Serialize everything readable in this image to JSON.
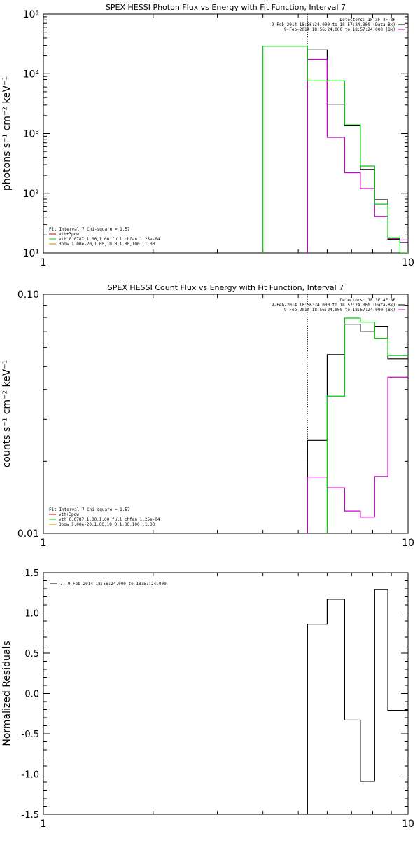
{
  "chart_data": [
    {
      "type": "line",
      "title": "SPEX HESSI Photon Flux vs Energy with Fit Function, Interval 7",
      "xlabel": "",
      "ylabel": "photons s⁻¹ cm⁻² keV⁻¹",
      "xscale": "log",
      "yscale": "log",
      "xlim": [
        1,
        10
      ],
      "ylim": [
        10,
        100000
      ],
      "x_ticks": [
        {
          "v": 1,
          "label": "1"
        },
        {
          "v": 10,
          "label": "10"
        }
      ],
      "y_ticks": [
        {
          "v": 10,
          "label": "10¹"
        },
        {
          "v": 100,
          "label": "10²"
        },
        {
          "v": 1000,
          "label": "10³"
        },
        {
          "v": 10000,
          "label": "10⁴"
        },
        {
          "v": 100000,
          "label": "10⁵"
        }
      ],
      "marker_line_x": 5.3,
      "legend_right": [
        {
          "text": "Detectors: 1F 3F 4F 8F",
          "color": "#000000"
        },
        {
          "text": "9-Feb-2014 18:56:24.000 to 18:57:24.000 (Data-Bk)",
          "color": "#000000"
        },
        {
          "text": "9-Feb-2014 18:56:24.000 to 18:57:24.000 (Bk)",
          "color": "#cc00cc"
        }
      ],
      "legend_left": [
        {
          "text": "Fit Interval 7   Chi-square = 1.57",
          "color": "#000000"
        },
        {
          "text": "vth+3pow",
          "color": "#cc0000"
        },
        {
          "text": "vth 0.0787,1.00,1.00  full chfan 1.25e-04",
          "color": "#00cc00"
        },
        {
          "text": "3pow 1.00e-20,1.00,10.0,1.00,100.,1.00",
          "color": "#cc8800"
        }
      ],
      "series": [
        {
          "name": "Data-Bk",
          "color": "#000000",
          "edges": [
            5.3,
            6.0,
            6.7,
            7.4,
            8.1,
            8.8,
            9.5,
            10.2
          ],
          "values": [
            25000,
            3100,
            1350,
            250,
            78,
            17,
            15
          ]
        },
        {
          "name": "Bk",
          "color": "#cc00cc",
          "edges": [
            5.3,
            6.0,
            6.7,
            7.4,
            8.1,
            8.8,
            9.5,
            10.2
          ],
          "values": [
            17500,
            860,
            220,
            120,
            41,
            17.5,
            16.5
          ]
        },
        {
          "name": "vth",
          "color": "#00cc00",
          "edges": [
            4.0,
            5.3,
            6.0,
            6.7,
            7.4,
            8.1,
            8.8,
            9.5,
            10.2
          ],
          "values": [
            29000,
            7600,
            7600,
            1400,
            285,
            66,
            18,
            10
          ]
        }
      ]
    },
    {
      "type": "line",
      "title": "SPEX HESSI Count Flux vs Energy with Fit Function, Interval 7",
      "xlabel": "",
      "ylabel": "counts s⁻¹ cm⁻² keV⁻¹",
      "xscale": "log",
      "yscale": "log",
      "xlim": [
        1,
        10
      ],
      "ylim": [
        0.01,
        0.1
      ],
      "x_ticks": [
        {
          "v": 1,
          "label": "1"
        },
        {
          "v": 10,
          "label": "10"
        }
      ],
      "y_ticks": [
        {
          "v": 0.01,
          "label": "0.01"
        },
        {
          "v": 0.1,
          "label": "0.10"
        }
      ],
      "marker_line_x": 5.3,
      "legend_right": [
        {
          "text": "Detectors: 1F 3F 4F 8F",
          "color": "#000000"
        },
        {
          "text": "9-Feb-2014 18:56:24.000 to 18:57:24.000 (Data-Bk)",
          "color": "#000000"
        },
        {
          "text": "9-Feb-2014 18:56:24.000 to 18:57:24.000 (Bk)",
          "color": "#cc00cc"
        }
      ],
      "legend_left": [
        {
          "text": "Fit Interval 7   Chi-square = 1.57",
          "color": "#000000"
        },
        {
          "text": "vth+3pow",
          "color": "#cc0000"
        },
        {
          "text": "vth 0.0787,1.00,1.00  full chfan 1.25e-04",
          "color": "#00cc00"
        },
        {
          "text": "3pow 1.00e-20,1.00,10.0,1.00,100.,1.00",
          "color": "#cc8800"
        }
      ],
      "series": [
        {
          "name": "Data-Bk",
          "color": "#000000",
          "edges": [
            5.3,
            6.0,
            6.7,
            7.4,
            8.1,
            8.8,
            9.5,
            10.2
          ],
          "values": [
            0.0245,
            0.056,
            0.075,
            0.07,
            0.0735,
            0.0538,
            0.0538
          ]
        },
        {
          "name": "Bk",
          "color": "#cc00cc",
          "edges": [
            5.3,
            6.0,
            6.7,
            7.4,
            8.1,
            8.8,
            9.5,
            10.2
          ],
          "values": [
            0.0172,
            0.0155,
            0.0124,
            0.0117,
            0.0173,
            0.045,
            0.045
          ]
        },
        {
          "name": "vth",
          "color": "#00cc00",
          "edges": [
            6.0,
            6.7,
            7.4,
            8.1,
            8.8,
            9.5,
            10.2
          ],
          "values": [
            0.0375,
            0.0795,
            0.0765,
            0.0655,
            0.0555,
            0.0555
          ]
        }
      ]
    },
    {
      "type": "line",
      "title": "",
      "xlabel": "",
      "ylabel": "Normalized Residuals",
      "xscale": "log",
      "yscale": "linear",
      "xlim": [
        1,
        10
      ],
      "ylim": [
        -1.5,
        1.5
      ],
      "x_ticks": [
        {
          "v": 1,
          "label": "1"
        },
        {
          "v": 10,
          "label": "10"
        }
      ],
      "y_ticks": [
        {
          "v": 1.5,
          "label": "1.5"
        },
        {
          "v": 1.0,
          "label": "1.0"
        },
        {
          "v": 0.5,
          "label": "0.5"
        },
        {
          "v": 0.0,
          "label": "0.0"
        },
        {
          "v": -0.5,
          "label": "-0.5"
        },
        {
          "v": -1.0,
          "label": "-1.0"
        },
        {
          "v": -1.5,
          "label": "-1.5"
        }
      ],
      "legend_left": [
        {
          "text": "7.  9-Feb-2014 18:56:24.000 to 18:57:24.000",
          "color": "#000000"
        }
      ],
      "series": [
        {
          "name": "residuals",
          "color": "#000000",
          "edges": [
            5.3,
            6.0,
            6.7,
            7.4,
            8.1,
            8.8,
            9.5,
            10.2
          ],
          "values": [
            0.86,
            1.17,
            -0.33,
            -1.09,
            1.29,
            -0.21,
            -0.21
          ]
        }
      ]
    }
  ]
}
